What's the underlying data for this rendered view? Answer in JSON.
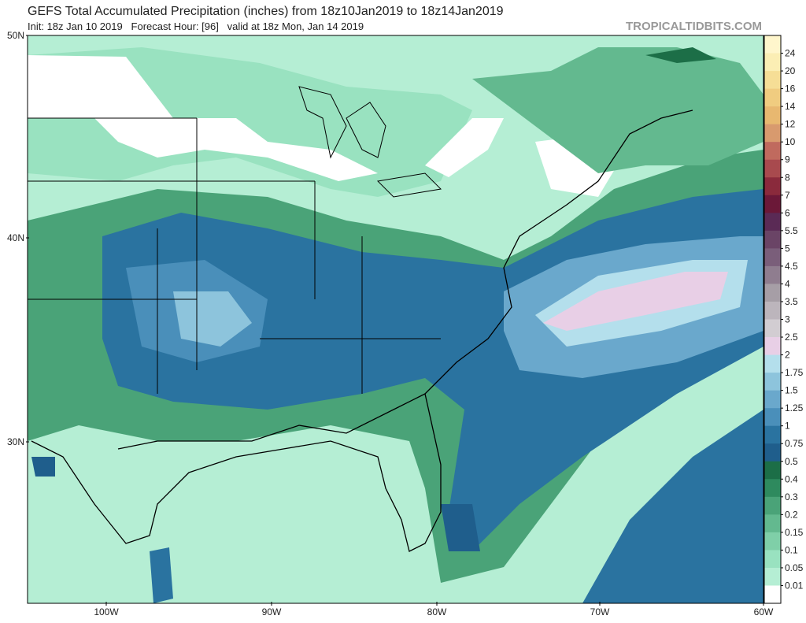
{
  "header": {
    "title": "GEFS Total Accumulated Precipitation (inches) from 18z10Jan2019 to 18z14Jan2019",
    "subtitle": "Init: 18z Jan 10 2019   Forecast Hour: [96]   valid at 18z Mon, Jan 14 2019",
    "watermark": "TROPICALTIDBITS.COM"
  },
  "map": {
    "lat_labels": [
      "50N",
      "40N",
      "30N"
    ],
    "lon_labels": [
      "100W",
      "90W",
      "80W",
      "70W",
      "60W"
    ]
  },
  "legend": {
    "levels": [
      "24",
      "20",
      "16",
      "14",
      "12",
      "10",
      "9",
      "8",
      "7",
      "6",
      "5.5",
      "5",
      "4.5",
      "4",
      "3.5",
      "3",
      "2.5",
      "2",
      "1.75",
      "1.5",
      "1.25",
      "1",
      "0.75",
      "0.5",
      "0.4",
      "0.3",
      "0.2",
      "0.15",
      "0.1",
      "0.05",
      "0.01"
    ],
    "colors": [
      "#fff6cc",
      "#fbeeb4",
      "#f6de96",
      "#f0cc80",
      "#e8b870",
      "#d89a6e",
      "#c06a5e",
      "#a84a4e",
      "#8a2a3c",
      "#6b1838",
      "#5a2a55",
      "#6a4466",
      "#7a5e7a",
      "#8f7d8f",
      "#a69ea6",
      "#bcb5bc",
      "#d2cdd2",
      "#e8cfe6",
      "#b4dfec",
      "#8dc4dc",
      "#6aa8cc",
      "#4a8fba",
      "#2a73a0",
      "#1f5e8c",
      "#1c6e47",
      "#2e8a5e",
      "#4aa378",
      "#63b98f",
      "#7fcfa8",
      "#99e2c0",
      "#b5eed4",
      "#ffffff"
    ]
  }
}
